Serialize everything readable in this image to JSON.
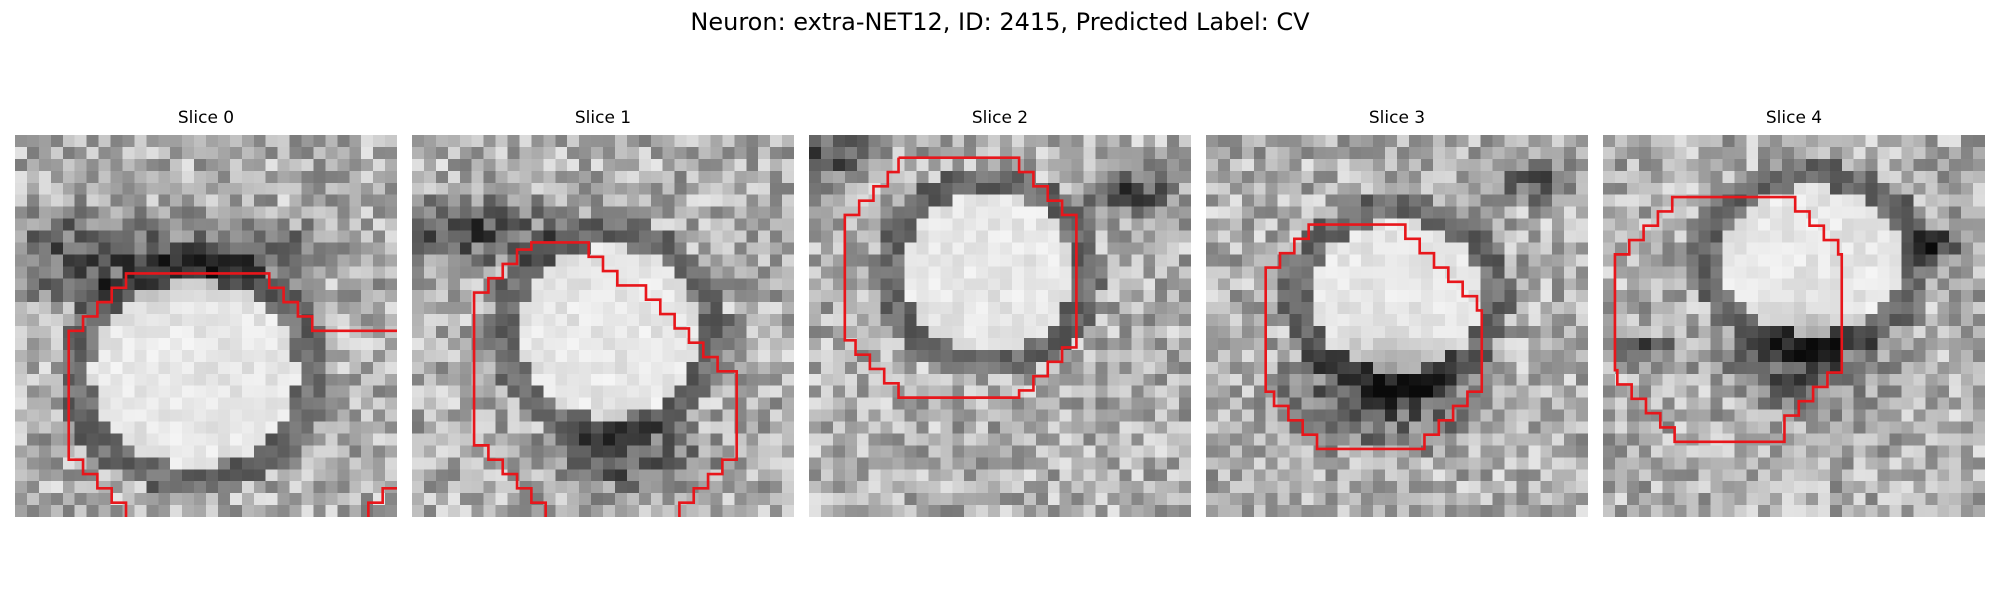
{
  "figure": {
    "title": "Neuron: extra-NET12, ID: 2415, Predicted Label: CV"
  },
  "contour_color": "#e8161b",
  "panels": [
    {
      "title": "Slice 0"
    },
    {
      "title": "Slice 1"
    },
    {
      "title": "Slice 2"
    },
    {
      "title": "Slice 3"
    },
    {
      "title": "Slice 4"
    }
  ]
}
